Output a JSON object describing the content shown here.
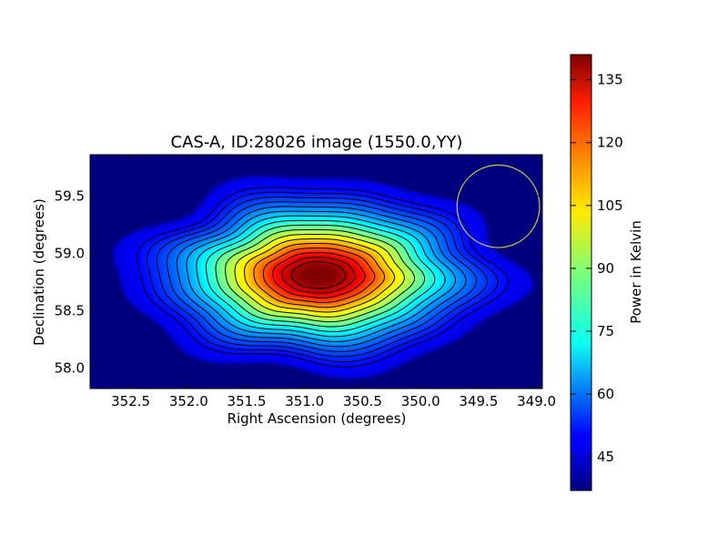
{
  "chart_data": {
    "type": "heatmap",
    "title": "CAS-A, ID:28026 image (1550.0,YY)",
    "xlabel": "Right Ascension (degrees)",
    "ylabel": "Declination (degrees)",
    "x_inverted": true,
    "xlim": [
      352.85,
      348.95
    ],
    "ylim": [
      57.82,
      59.86
    ],
    "x_ticks": [
      352.5,
      352.0,
      351.5,
      351.0,
      350.5,
      350.0,
      349.5,
      349.0
    ],
    "x_tick_labels": [
      "352.5",
      "352.0",
      "351.5",
      "351.0",
      "350.5",
      "350.0",
      "349.5",
      "349.0"
    ],
    "y_ticks": [
      58.0,
      58.5,
      59.0,
      59.5
    ],
    "y_tick_labels": [
      "58.0",
      "58.5",
      "59.0",
      "59.5"
    ],
    "colormap": "jet",
    "colorbar": {
      "label": "Power in Kelvin",
      "range": [
        37,
        141
      ],
      "ticks": [
        45,
        60,
        75,
        90,
        105,
        120,
        135
      ],
      "tick_labels": [
        "45",
        "60",
        "75",
        "90",
        "105",
        "120",
        "135"
      ]
    },
    "source": {
      "peak_ra": 350.88,
      "peak_dec": 58.81,
      "peak_value": 141,
      "background_value": 37,
      "contour_count": 17
    },
    "circle": {
      "center_ra": 349.33,
      "center_dec": 59.41,
      "radius_deg": 0.36,
      "color": "#c8c840"
    },
    "grid": false
  }
}
